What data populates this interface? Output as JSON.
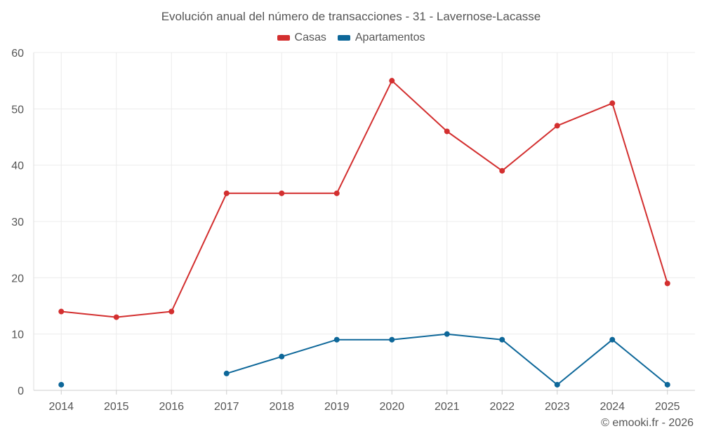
{
  "chart_data": {
    "type": "line",
    "title": "Evolución anual del número de transacciones - 31 - Lavernose-Lacasse",
    "xlabel": "",
    "ylabel": "",
    "categories": [
      "2014",
      "2015",
      "2016",
      "2017",
      "2018",
      "2019",
      "2020",
      "2021",
      "2022",
      "2023",
      "2024",
      "2025"
    ],
    "ylim": [
      0,
      60
    ],
    "yticks": [
      0,
      10,
      20,
      30,
      40,
      50,
      60
    ],
    "grid": true,
    "legend_position": "top-center",
    "series": [
      {
        "name": "Casas",
        "color": "#d32f2f",
        "values": [
          14,
          13,
          14,
          35,
          35,
          35,
          55,
          46,
          39,
          47,
          51,
          19
        ]
      },
      {
        "name": "Apartamentos",
        "color": "#0d6799",
        "values": [
          1,
          null,
          null,
          3,
          6,
          9,
          9,
          10,
          9,
          1,
          9,
          1
        ]
      }
    ]
  },
  "credit": "© emooki.fr - 2026"
}
